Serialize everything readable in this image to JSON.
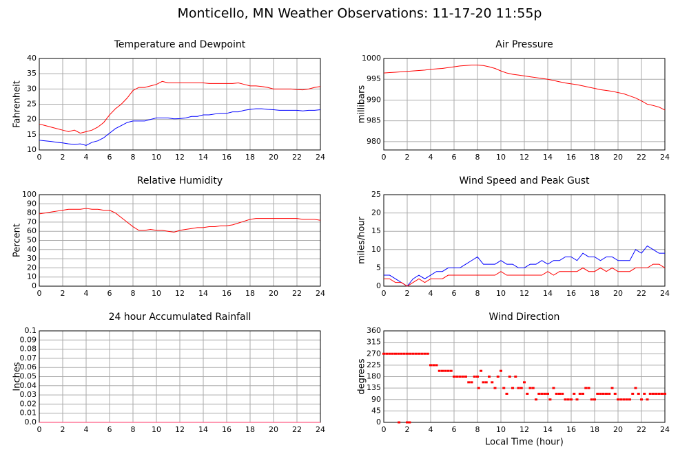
{
  "title": "Monticello, MN Weather Observations: 11-17-20 11:55p",
  "chart_data": [
    {
      "type": "line",
      "title": "Temperature and Dewpoint",
      "y_label": "Fahrenheit",
      "x": [
        0,
        0.5,
        1,
        1.5,
        2,
        2.5,
        3,
        3.5,
        4,
        4.5,
        5,
        5.5,
        6,
        6.5,
        7,
        7.5,
        8,
        8.5,
        9,
        9.5,
        10,
        10.5,
        11,
        11.5,
        12,
        12.5,
        13,
        13.5,
        14,
        14.5,
        15,
        15.5,
        16,
        16.5,
        17,
        17.5,
        18,
        18.5,
        19,
        19.5,
        20,
        20.5,
        21,
        21.5,
        22,
        22.5,
        23,
        23.5,
        24
      ],
      "xlim": [
        0,
        24
      ],
      "xticks": [
        0,
        2,
        4,
        6,
        8,
        10,
        12,
        14,
        16,
        18,
        20,
        22,
        24
      ],
      "ylim": [
        10,
        40
      ],
      "yticks": [
        10,
        15,
        20,
        25,
        30,
        35,
        40
      ],
      "grid": true,
      "series": [
        {
          "name": "Temperature",
          "color": "#ff0000",
          "values": [
            18.5,
            18,
            17.5,
            17,
            16.5,
            16,
            16.5,
            15.5,
            16,
            16.5,
            17.5,
            19,
            21.5,
            23.5,
            25,
            27,
            29.5,
            30.5,
            30.5,
            31,
            31.5,
            32.5,
            32,
            32,
            32,
            32,
            32,
            32,
            32,
            31.8,
            31.8,
            31.8,
            31.8,
            31.8,
            32,
            31.5,
            31,
            31,
            30.8,
            30.5,
            30,
            30,
            30,
            30,
            29.8,
            29.7,
            30,
            30.5,
            30.8
          ]
        },
        {
          "name": "Dewpoint",
          "color": "#0000ff",
          "values": [
            13.2,
            13,
            12.8,
            12.5,
            12.3,
            12,
            11.8,
            12,
            11.5,
            12.5,
            13,
            14,
            15.5,
            17,
            18,
            19,
            19.5,
            19.5,
            19.5,
            20,
            20.5,
            20.5,
            20.5,
            20.2,
            20.3,
            20.5,
            21,
            21,
            21.5,
            21.5,
            21.8,
            22,
            22,
            22.5,
            22.5,
            23,
            23.3,
            23.5,
            23.5,
            23.3,
            23.2,
            23,
            23,
            23,
            23,
            22.8,
            23,
            23,
            23.2
          ]
        }
      ]
    },
    {
      "type": "line",
      "title": "Air Pressure",
      "y_label": "millibars",
      "x": [
        0,
        0.5,
        1,
        1.5,
        2,
        2.5,
        3,
        3.5,
        4,
        4.5,
        5,
        5.5,
        6,
        6.5,
        7,
        7.5,
        8,
        8.5,
        9,
        9.5,
        10,
        10.5,
        11,
        11.5,
        12,
        12.5,
        13,
        13.5,
        14,
        14.5,
        15,
        15.5,
        16,
        16.5,
        17,
        17.5,
        18,
        18.5,
        19,
        19.5,
        20,
        20.5,
        21,
        21.5,
        22,
        22.5,
        23,
        23.5,
        24
      ],
      "xlim": [
        0,
        24
      ],
      "xticks": [
        0,
        2,
        4,
        6,
        8,
        10,
        12,
        14,
        16,
        18,
        20,
        22,
        24
      ],
      "ylim": [
        978,
        1000
      ],
      "yticks": [
        980,
        985,
        990,
        995,
        1000
      ],
      "grid": true,
      "series": [
        {
          "name": "Pressure",
          "color": "#ff0000",
          "values": [
            996.5,
            996.6,
            996.7,
            996.8,
            996.9,
            997,
            997.1,
            997.2,
            997.4,
            997.5,
            997.6,
            997.8,
            998,
            998.2,
            998.3,
            998.4,
            998.4,
            998.3,
            998,
            997.6,
            997,
            996.5,
            996.2,
            996,
            995.8,
            995.6,
            995.4,
            995.2,
            995,
            994.7,
            994.4,
            994.1,
            993.9,
            993.7,
            993.4,
            993.1,
            992.8,
            992.5,
            992.3,
            992.1,
            991.8,
            991.5,
            991,
            990.5,
            989.8,
            989,
            988.7,
            988.3,
            987.6
          ]
        }
      ]
    },
    {
      "type": "line",
      "title": "Relative Humidity",
      "y_label": "Percent",
      "x": [
        0,
        0.5,
        1,
        1.5,
        2,
        2.5,
        3,
        3.5,
        4,
        4.5,
        5,
        5.5,
        6,
        6.5,
        7,
        7.5,
        8,
        8.5,
        9,
        9.5,
        10,
        10.5,
        11,
        11.5,
        12,
        12.5,
        13,
        13.5,
        14,
        14.5,
        15,
        15.5,
        16,
        16.5,
        17,
        17.5,
        18,
        18.5,
        19,
        19.5,
        20,
        20.5,
        21,
        21.5,
        22,
        22.5,
        23,
        23.5,
        24
      ],
      "xlim": [
        0,
        24
      ],
      "xticks": [
        0,
        2,
        4,
        6,
        8,
        10,
        12,
        14,
        16,
        18,
        20,
        22,
        24
      ],
      "ylim": [
        0,
        100
      ],
      "yticks": [
        0,
        10,
        20,
        30,
        40,
        50,
        60,
        70,
        80,
        90,
        100
      ],
      "grid": true,
      "series": [
        {
          "name": "Humidity",
          "color": "#ff0000",
          "values": [
            79,
            80,
            81,
            82,
            83,
            84,
            84,
            84,
            85,
            84,
            84,
            83,
            83,
            80,
            75,
            70,
            65,
            61,
            61,
            62,
            61,
            61,
            60,
            59,
            61,
            62,
            63,
            64,
            64,
            65,
            65,
            66,
            66,
            67,
            69,
            71,
            73,
            74,
            74,
            74,
            74,
            74,
            74,
            74,
            74,
            73,
            73,
            73,
            72
          ]
        }
      ]
    },
    {
      "type": "line",
      "title": "Wind Speed and Peak Gust",
      "y_label": "miles/hour",
      "x": [
        0,
        0.5,
        1,
        1.5,
        2,
        2.5,
        3,
        3.5,
        4,
        4.5,
        5,
        5.5,
        6,
        6.5,
        7,
        7.5,
        8,
        8.5,
        9,
        9.5,
        10,
        10.5,
        11,
        11.5,
        12,
        12.5,
        13,
        13.5,
        14,
        14.5,
        15,
        15.5,
        16,
        16.5,
        17,
        17.5,
        18,
        18.5,
        19,
        19.5,
        20,
        20.5,
        21,
        21.5,
        22,
        22.5,
        23,
        23.5,
        24
      ],
      "xlim": [
        0,
        24
      ],
      "xticks": [
        0,
        2,
        4,
        6,
        8,
        10,
        12,
        14,
        16,
        18,
        20,
        22,
        24
      ],
      "ylim": [
        0,
        25
      ],
      "yticks": [
        0,
        5,
        10,
        15,
        20,
        25
      ],
      "grid": true,
      "series": [
        {
          "name": "Peak Gust",
          "color": "#0000ff",
          "values": [
            3,
            3,
            2,
            1,
            0,
            2,
            3,
            2,
            3,
            4,
            4,
            5,
            5,
            5,
            6,
            7,
            8,
            6,
            6,
            6,
            7,
            6,
            6,
            5,
            5,
            6,
            6,
            7,
            6,
            7,
            7,
            8,
            8,
            7,
            9,
            8,
            8,
            7,
            8,
            8,
            7,
            7,
            7,
            10,
            9,
            11,
            10,
            9,
            9
          ]
        },
        {
          "name": "Wind Speed",
          "color": "#ff0000",
          "values": [
            2,
            2,
            1,
            1,
            0,
            1,
            2,
            1,
            2,
            2,
            2,
            3,
            3,
            3,
            3,
            3,
            3,
            3,
            3,
            3,
            4,
            3,
            3,
            3,
            3,
            3,
            3,
            3,
            4,
            3,
            4,
            4,
            4,
            4,
            5,
            4,
            4,
            5,
            4,
            5,
            4,
            4,
            4,
            5,
            5,
            5,
            6,
            6,
            5
          ]
        }
      ]
    },
    {
      "type": "line",
      "title": "24 hour Accumulated Rainfall",
      "y_label": "Inches",
      "x": [
        0,
        24
      ],
      "xlim": [
        0,
        24
      ],
      "xticks": [
        0,
        2,
        4,
        6,
        8,
        10,
        12,
        14,
        16,
        18,
        20,
        22,
        24
      ],
      "ylim": [
        0,
        0.1
      ],
      "yticks": [
        {
          "value": 0,
          "label": "0.0"
        },
        0.01,
        0.02,
        0.03,
        0.04,
        0.05,
        0.06,
        0.07,
        0.08,
        0.09,
        0.1
      ],
      "grid": true,
      "series": [
        {
          "name": "Rainfall",
          "color": "#ff3366",
          "values": [
            0,
            0
          ]
        }
      ]
    },
    {
      "type": "scatter",
      "title": "Wind Direction",
      "y_label": "degrees",
      "x_label": "Local Time (hour)",
      "xlim": [
        0,
        24
      ],
      "xticks": [
        0,
        2,
        4,
        6,
        8,
        10,
        12,
        14,
        16,
        18,
        20,
        22,
        24
      ],
      "ylim": [
        0,
        360
      ],
      "yticks": [
        0,
        45,
        90,
        135,
        180,
        225,
        270,
        315,
        360
      ],
      "grid": true,
      "series": [
        {
          "name": "Direction",
          "color": "#ff0000",
          "x": [
            0,
            0.25,
            0.5,
            0.75,
            1,
            1.25,
            1.5,
            1.75,
            2,
            2.25,
            2.5,
            2.75,
            3,
            3.25,
            3.5,
            3.75,
            1.3,
            2,
            2.2,
            4,
            4.25,
            4.5,
            4.75,
            5,
            5.25,
            5.5,
            5.75,
            6,
            6.25,
            6.5,
            6.75,
            7,
            7.25,
            7.5,
            7.75,
            8,
            8.1,
            8.3,
            8.5,
            8.75,
            9,
            9.25,
            9.5,
            9.75,
            10,
            10.25,
            10.5,
            10.75,
            11,
            11.25,
            11.5,
            11.75,
            12,
            12.25,
            12.5,
            12.75,
            13,
            13.25,
            13.5,
            13.75,
            14,
            14.2,
            14.5,
            14.75,
            15,
            15.25,
            15.5,
            15.75,
            16,
            16.25,
            16.5,
            16.75,
            17,
            17.25,
            17.5,
            17.75,
            18,
            18.25,
            18.5,
            18.75,
            19,
            19.25,
            19.5,
            19.75,
            20,
            20.25,
            20.5,
            20.75,
            21,
            21.25,
            21.5,
            21.75,
            22,
            22.25,
            22.5,
            22.75,
            23,
            23.25,
            23.5,
            23.75,
            24
          ],
          "values": [
            270,
            270,
            270,
            270,
            270,
            270,
            270,
            270,
            270,
            270,
            270,
            270,
            270,
            270,
            270,
            270,
            0,
            0,
            0,
            225,
            225,
            225,
            202.5,
            202.5,
            202.5,
            202.5,
            202.5,
            180,
            180,
            180,
            180,
            180,
            157.5,
            157.5,
            180,
            180,
            135,
            202.5,
            157.5,
            157.5,
            180,
            157.5,
            135,
            180,
            202.5,
            135,
            112.5,
            180,
            135,
            180,
            135,
            135,
            157.5,
            112.5,
            135,
            135,
            90,
            112.5,
            112.5,
            112.5,
            112.5,
            90,
            135,
            112.5,
            112.5,
            112.5,
            90,
            90,
            90,
            112.5,
            90,
            112.5,
            112.5,
            135,
            135,
            90,
            90,
            112.5,
            112.5,
            112.5,
            112.5,
            112.5,
            135,
            112.5,
            90,
            90,
            90,
            90,
            90,
            112.5,
            135,
            112.5,
            90,
            112.5,
            90,
            112.5,
            112.5,
            112.5,
            112.5,
            112.5,
            112.5
          ]
        }
      ]
    }
  ]
}
